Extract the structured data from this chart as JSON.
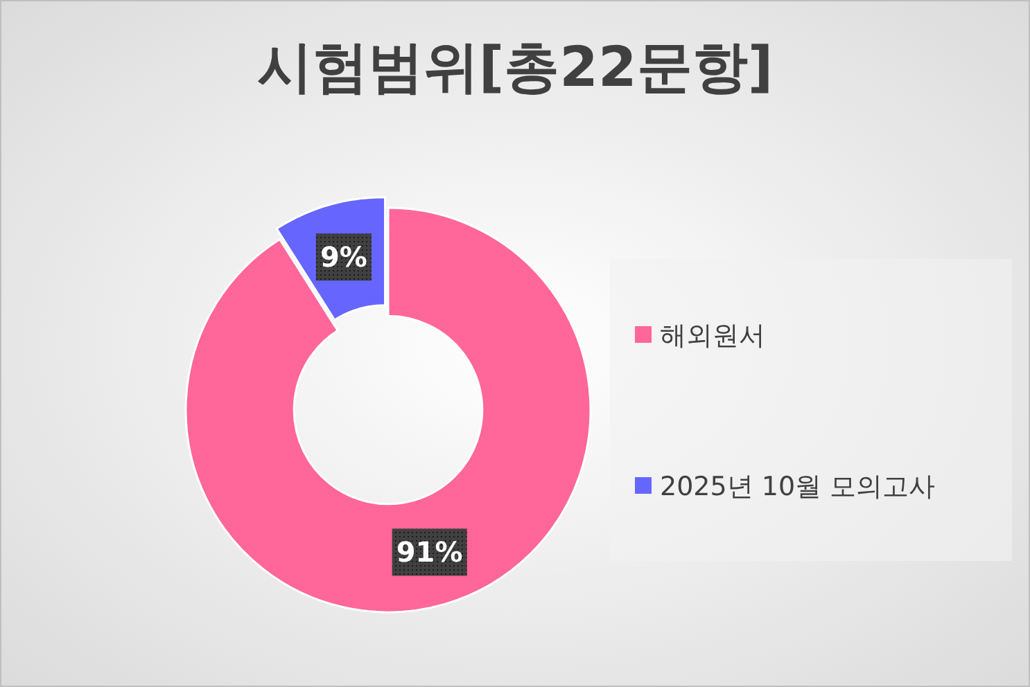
{
  "chart_data": {
    "type": "donut",
    "title": "시험범위[총22문항]",
    "categories": [
      "해외원서",
      "2025년 10월 모의고사"
    ],
    "values": [
      91,
      9
    ],
    "colors": [
      "#ff6699",
      "#6666ff"
    ],
    "value_labels": [
      "91%",
      "9%"
    ],
    "legend": "right"
  }
}
